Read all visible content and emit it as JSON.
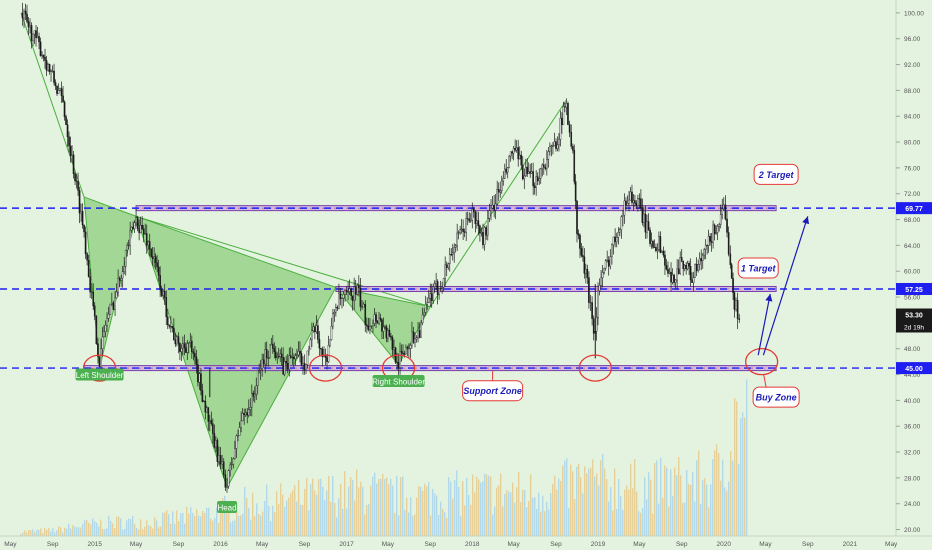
{
  "chart_data": {
    "type": "candlestick",
    "y_axis": {
      "position": "right",
      "ylim": [
        19,
        102
      ],
      "ticks": [
        20,
        24,
        28,
        32,
        36,
        40,
        44,
        48,
        52,
        56,
        60,
        64,
        68,
        72,
        76,
        80,
        84,
        88,
        92,
        96,
        100
      ],
      "tick_labels": [
        "20.00",
        "24.00",
        "28.00",
        "32.00",
        "36.00",
        "40.00",
        "44.00",
        "48.00",
        "52.00",
        "56.00",
        "60.00",
        "64.00",
        "68.00",
        "72.00",
        "76.00",
        "80.00",
        "84.00",
        "88.00",
        "92.00",
        "96.00",
        "100.00"
      ]
    },
    "x_axis": {
      "range": [
        "2014-04",
        "2021-06"
      ],
      "ticks": [
        {
          "date": "2014-05",
          "label": "May"
        },
        {
          "date": "2014-09",
          "label": "Sep"
        },
        {
          "date": "2015-01",
          "label": "2015"
        },
        {
          "date": "2015-05",
          "label": "May"
        },
        {
          "date": "2015-09",
          "label": "Sep"
        },
        {
          "date": "2016-01",
          "label": "2016"
        },
        {
          "date": "2016-05",
          "label": "May"
        },
        {
          "date": "2016-09",
          "label": "Sep"
        },
        {
          "date": "2017-01",
          "label": "2017"
        },
        {
          "date": "2017-05",
          "label": "May"
        },
        {
          "date": "2017-09",
          "label": "Sep"
        },
        {
          "date": "2018-01",
          "label": "2018"
        },
        {
          "date": "2018-05",
          "label": "May"
        },
        {
          "date": "2018-09",
          "label": "Sep"
        },
        {
          "date": "2019-01",
          "label": "2019"
        },
        {
          "date": "2019-05",
          "label": "May"
        },
        {
          "date": "2019-09",
          "label": "Sep"
        },
        {
          "date": "2020-01",
          "label": "2020"
        },
        {
          "date": "2020-05",
          "label": "May"
        },
        {
          "date": "2020-09",
          "label": "Sep"
        },
        {
          "date": "2021-01",
          "label": "2021"
        },
        {
          "date": "2021-05",
          "label": "May"
        }
      ]
    },
    "price_series": [
      {
        "date": "2014-06",
        "price": 100
      },
      {
        "date": "2014-08",
        "price": 94
      },
      {
        "date": "2014-10",
        "price": 86
      },
      {
        "date": "2014-12",
        "price": 66
      },
      {
        "date": "2015-01",
        "price": 52
      },
      {
        "date": "2015-01-15",
        "price": 46
      },
      {
        "date": "2015-02",
        "price": 52
      },
      {
        "date": "2015-03",
        "price": 56
      },
      {
        "date": "2015-04",
        "price": 63
      },
      {
        "date": "2015-05",
        "price": 68
      },
      {
        "date": "2015-06",
        "price": 65
      },
      {
        "date": "2015-07",
        "price": 60
      },
      {
        "date": "2015-08",
        "price": 53
      },
      {
        "date": "2015-09",
        "price": 48
      },
      {
        "date": "2015-10",
        "price": 49
      },
      {
        "date": "2015-11",
        "price": 43
      },
      {
        "date": "2015-12",
        "price": 36
      },
      {
        "date": "2016-01",
        "price": 30
      },
      {
        "date": "2016-01-20",
        "price": 27
      },
      {
        "date": "2016-03",
        "price": 37
      },
      {
        "date": "2016-04",
        "price": 40
      },
      {
        "date": "2016-05",
        "price": 46
      },
      {
        "date": "2016-06",
        "price": 49
      },
      {
        "date": "2016-07",
        "price": 45
      },
      {
        "date": "2016-08",
        "price": 47
      },
      {
        "date": "2016-09",
        "price": 46
      },
      {
        "date": "2016-10",
        "price": 51
      },
      {
        "date": "2016-11",
        "price": 46
      },
      {
        "date": "2016-12",
        "price": 55
      },
      {
        "date": "2017-01",
        "price": 56
      },
      {
        "date": "2017-02",
        "price": 57
      },
      {
        "date": "2017-03",
        "price": 52
      },
      {
        "date": "2017-04",
        "price": 53
      },
      {
        "date": "2017-05",
        "price": 50
      },
      {
        "date": "2017-06",
        "price": 46
      },
      {
        "date": "2017-07",
        "price": 49
      },
      {
        "date": "2017-08",
        "price": 51
      },
      {
        "date": "2017-09",
        "price": 56
      },
      {
        "date": "2017-10",
        "price": 58
      },
      {
        "date": "2017-11",
        "price": 63
      },
      {
        "date": "2017-12",
        "price": 66
      },
      {
        "date": "2018-01",
        "price": 69
      },
      {
        "date": "2018-02",
        "price": 65
      },
      {
        "date": "2018-03",
        "price": 70
      },
      {
        "date": "2018-04",
        "price": 74
      },
      {
        "date": "2018-05",
        "price": 79
      },
      {
        "date": "2018-06",
        "price": 75
      },
      {
        "date": "2018-07",
        "price": 74
      },
      {
        "date": "2018-08",
        "price": 77
      },
      {
        "date": "2018-09",
        "price": 80
      },
      {
        "date": "2018-10",
        "price": 86
      },
      {
        "date": "2018-10-20",
        "price": 78
      },
      {
        "date": "2018-11",
        "price": 66
      },
      {
        "date": "2018-12",
        "price": 58
      },
      {
        "date": "2018-12-24",
        "price": 50
      },
      {
        "date": "2019-01",
        "price": 57
      },
      {
        "date": "2019-02",
        "price": 62
      },
      {
        "date": "2019-03",
        "price": 67
      },
      {
        "date": "2019-04",
        "price": 72
      },
      {
        "date": "2019-05",
        "price": 70
      },
      {
        "date": "2019-06",
        "price": 65
      },
      {
        "date": "2019-07",
        "price": 64
      },
      {
        "date": "2019-08",
        "price": 58
      },
      {
        "date": "2019-09",
        "price": 62
      },
      {
        "date": "2019-10",
        "price": 59
      },
      {
        "date": "2019-11",
        "price": 62
      },
      {
        "date": "2019-12",
        "price": 66
      },
      {
        "date": "2020-01",
        "price": 69
      },
      {
        "date": "2020-01-20",
        "price": 62
      },
      {
        "date": "2020-02",
        "price": 55
      },
      {
        "date": "2020-02-15",
        "price": 53.3
      }
    ],
    "volume_series": [
      {
        "date": "2014-06",
        "volume": 0.04
      },
      {
        "date": "2014-09",
        "volume": 0.05
      },
      {
        "date": "2014-12",
        "volume": 0.1
      },
      {
        "date": "2015-03",
        "volume": 0.12
      },
      {
        "date": "2015-06",
        "volume": 0.13
      },
      {
        "date": "2015-09",
        "volume": 0.16
      },
      {
        "date": "2015-12",
        "volume": 0.2
      },
      {
        "date": "2016-03",
        "volume": 0.28
      },
      {
        "date": "2016-06",
        "volume": 0.3
      },
      {
        "date": "2016-09",
        "volume": 0.34
      },
      {
        "date": "2016-12",
        "volume": 0.38
      },
      {
        "date": "2017-03",
        "volume": 0.4
      },
      {
        "date": "2017-06",
        "volume": 0.35
      },
      {
        "date": "2017-09",
        "volume": 0.36
      },
      {
        "date": "2017-12",
        "volume": 0.38
      },
      {
        "date": "2018-03",
        "volume": 0.4
      },
      {
        "date": "2018-06",
        "volume": 0.38
      },
      {
        "date": "2018-09",
        "volume": 0.42
      },
      {
        "date": "2018-12",
        "volume": 0.5
      },
      {
        "date": "2019-03",
        "volume": 0.45
      },
      {
        "date": "2019-06",
        "volume": 0.44
      },
      {
        "date": "2019-09",
        "volume": 0.48
      },
      {
        "date": "2019-12",
        "volume": 0.5
      },
      {
        "date": "2020-02",
        "volume": 1.0
      }
    ],
    "horizontal_lines": [
      {
        "name": "resistance",
        "price": 69.77,
        "label": "69.77",
        "color": "#1e1ef0"
      },
      {
        "name": "neckline",
        "price": 57.25,
        "label": "57.25",
        "color": "#1e1ef0"
      },
      {
        "name": "support",
        "price": 45.0,
        "label": "45.00",
        "color": "#1e1ef0"
      }
    ],
    "current_price": {
      "label": "53.30",
      "countdown": "2d 19h"
    },
    "annotations": [
      {
        "text": "Left Shoulder",
        "kind": "green-label"
      },
      {
        "text": "Head",
        "kind": "green-label"
      },
      {
        "text": "Right Shoulder",
        "kind": "green-label"
      },
      {
        "text": "Support Zone",
        "kind": "red-callout"
      },
      {
        "text": "Buy Zone",
        "kind": "red-callout"
      },
      {
        "text": "1 Target",
        "kind": "red-callout"
      },
      {
        "text": "2 Target",
        "kind": "red-callout"
      }
    ],
    "colors": {
      "background": "#e4f3e0",
      "up": "#1a1a1a",
      "down": "#1a1a1a",
      "triangle_fill": "#6bbf5a",
      "triangle_line": "#4caf3f",
      "box_fill": "#c8a8e0",
      "box_line": "#7b3fa8",
      "accent_red": "#e53935",
      "callout_text": "#1a1ab8",
      "label_green": "#4caf50",
      "volume_a": "#e8c98a",
      "volume_b": "#a8d4ea"
    }
  }
}
